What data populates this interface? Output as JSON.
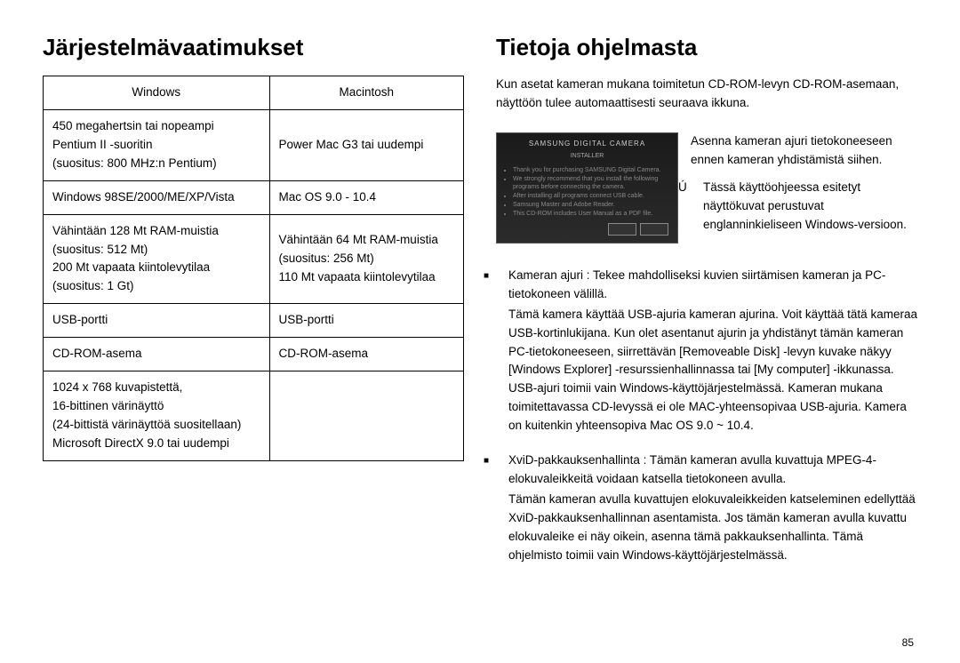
{
  "left": {
    "heading": "Järjestelmävaatimukset",
    "table": {
      "headers": [
        "Windows",
        "Macintosh"
      ],
      "rows": [
        [
          "450 megahertsin tai nopeampi\nPentium II -suoritin\n(suositus: 800 MHz:n Pentium)",
          "Power Mac G3 tai uudempi"
        ],
        [
          "Windows 98SE/2000/ME/XP/Vista",
          "Mac OS 9.0 - 10.4"
        ],
        [
          "Vähintään 128 Mt RAM-muistia\n(suositus: 512 Mt)\n200 Mt vapaata kiintolevytilaa\n(suositus: 1 Gt)",
          "Vähintään 64 Mt RAM-muistia\n(suositus: 256 Mt)\n110 Mt vapaata kiintolevytilaa"
        ],
        [
          "USB-portti",
          "USB-portti"
        ],
        [
          "CD-ROM-asema",
          "CD-ROM-asema"
        ],
        [
          "1024 x 768 kuvapistettä,\n16-bittinen värinäyttö\n(24-bittistä värinäyttöä suositellaan)\nMicrosoft DirectX 9.0 tai uudempi",
          ""
        ]
      ]
    }
  },
  "right": {
    "heading": "Tietoja ohjelmasta",
    "intro": "Kun asetat kameran mukana toimitetun CD-ROM-levyn CD-ROM-asemaan, näyttöön tulee automaattisesti seuraava ikkuna.",
    "installer": {
      "brand": "SAMSUNG DIGITAL CAMERA",
      "sub": "INSTALLER",
      "bullets": [
        "Thank you for purchasing SAMSUNG Digital Camera.",
        "We strongly recommend that you install the following programs before connecting the camera.",
        "After installing all programs connect USB cable.",
        "Samsung Master and Adobe Reader.",
        "This CD-ROM includes User Manual as a PDF file."
      ]
    },
    "install_text": "Asenna kameran ajuri tietokoneeseen ennen kameran yhdistämistä siihen.",
    "note": "Tässä käyttöohjeessa esitetyt näyttökuvat perustuvat englanninkieliseen Windows-versioon.",
    "note_marker": "Ú",
    "items": [
      {
        "head": "Kameran ajuri : Tekee mahdolliseksi kuvien siirtämisen kameran ja PC-tietokoneen välillä.",
        "body": "Tämä kamera käyttää USB-ajuria kameran ajurina. Voit käyttää tätä kameraa USB-kortinlukijana. Kun olet asentanut ajurin ja yhdistänyt tämän kameran PC-tietokoneeseen, siirrettävän [Removeable Disk] -levyn kuvake näkyy [Windows Explorer] -resurssienhallinnassa tai [My computer] -ikkunassa. USB-ajuri toimii vain Windows-käyttöjärjestelmässä. Kameran mukana toimitettavassa CD-levyssä ei ole MAC-yhteensopivaa USB-ajuria. Kamera on kuitenkin yhteensopiva Mac OS 9.0 ~ 10.4."
      },
      {
        "head": "XviD-pakkauksenhallinta : Tämän kameran avulla kuvattuja MPEG-4-elokuvaleikkeitä voidaan katsella tietokoneen avulla.",
        "body": "Tämän kameran avulla kuvattujen elokuvaleikkeiden katseleminen edellyttää XviD-pakkauksenhallinnan asentamista. Jos tämän kameran avulla kuvattu elokuvaleike ei näy oikein, asenna tämä pakkauksenhallinta. Tämä ohjelmisto toimii vain Windows-käyttöjärjestelmässä."
      }
    ]
  },
  "page_number": "85"
}
